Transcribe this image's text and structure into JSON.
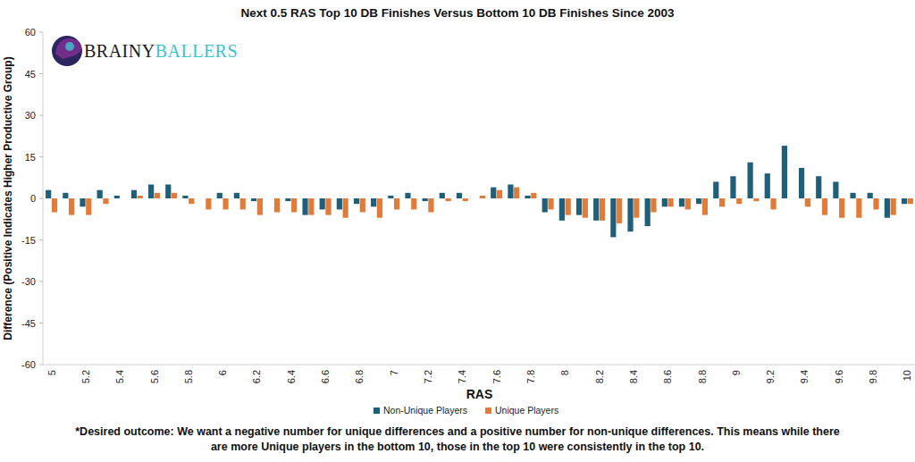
{
  "chart_data": {
    "type": "bar",
    "title": "Next 0.5 RAS Top 10 DB Finishes Versus Bottom 10 DB Finishes Since 2003",
    "x_label": "RAS",
    "y_label": "Difference (Positive Indicates Higher Productive Group)",
    "logo_text": [
      "BRAINY",
      "BALLERS"
    ],
    "note": [
      "*Desired outcome: We want a negative number for unique differences and a positive number for non-unique differences. This means while there",
      "are more Unique players in the bottom 10, those in the top 10 were consistently in the top 10."
    ],
    "categories": [
      5,
      null,
      5.2,
      null,
      5.4,
      null,
      5.6,
      null,
      5.8,
      null,
      6,
      null,
      6.2,
      null,
      6.4,
      null,
      6.6,
      null,
      6.8,
      null,
      7,
      null,
      7.2,
      null,
      7.4,
      null,
      7.6,
      null,
      7.8,
      null,
      8,
      null,
      8.2,
      null,
      8.4,
      null,
      8.6,
      null,
      8.8,
      null,
      9,
      null,
      9.2,
      null,
      9.4,
      null,
      9.6,
      null,
      9.8,
      null,
      10
    ],
    "series": [
      {
        "name": "Non-Unique Players",
        "color": "#1f5f7a",
        "values": [
          3,
          2,
          -3,
          3,
          1,
          3,
          5,
          5,
          1,
          0,
          2,
          2,
          -1,
          0,
          -1,
          -6,
          -4,
          -4,
          -2,
          -3,
          1,
          2,
          -1,
          2,
          2,
          0,
          4,
          5,
          1,
          -5,
          -8,
          -6,
          -8,
          -14,
          -12,
          -10,
          -3,
          -3,
          -2,
          6,
          8,
          13,
          9,
          19,
          11,
          8,
          6,
          2,
          2,
          -7,
          -2
        ]
      },
      {
        "name": "Unique Players",
        "color": "#e07b39",
        "values": [
          -5,
          -6,
          -6,
          -2,
          0,
          1,
          2,
          2,
          -2,
          -4,
          -4,
          -4,
          -6,
          -5,
          -5,
          -6,
          -6,
          -7,
          -5,
          -7,
          -4,
          -4,
          -5,
          -1,
          -1,
          1,
          3,
          4,
          2,
          -4,
          -6,
          -7,
          -8,
          -9,
          -7,
          -5,
          -3,
          -4,
          -6,
          -3,
          -2,
          -1,
          -4,
          0,
          -3,
          -6,
          -7,
          -7,
          -4,
          -6,
          -2
        ]
      }
    ],
    "ylim": [
      -60,
      60
    ],
    "yticks": [
      -60,
      -45,
      -30,
      -15,
      0,
      15,
      30,
      45,
      60
    ],
    "grid": false,
    "legend": "bottom"
  }
}
